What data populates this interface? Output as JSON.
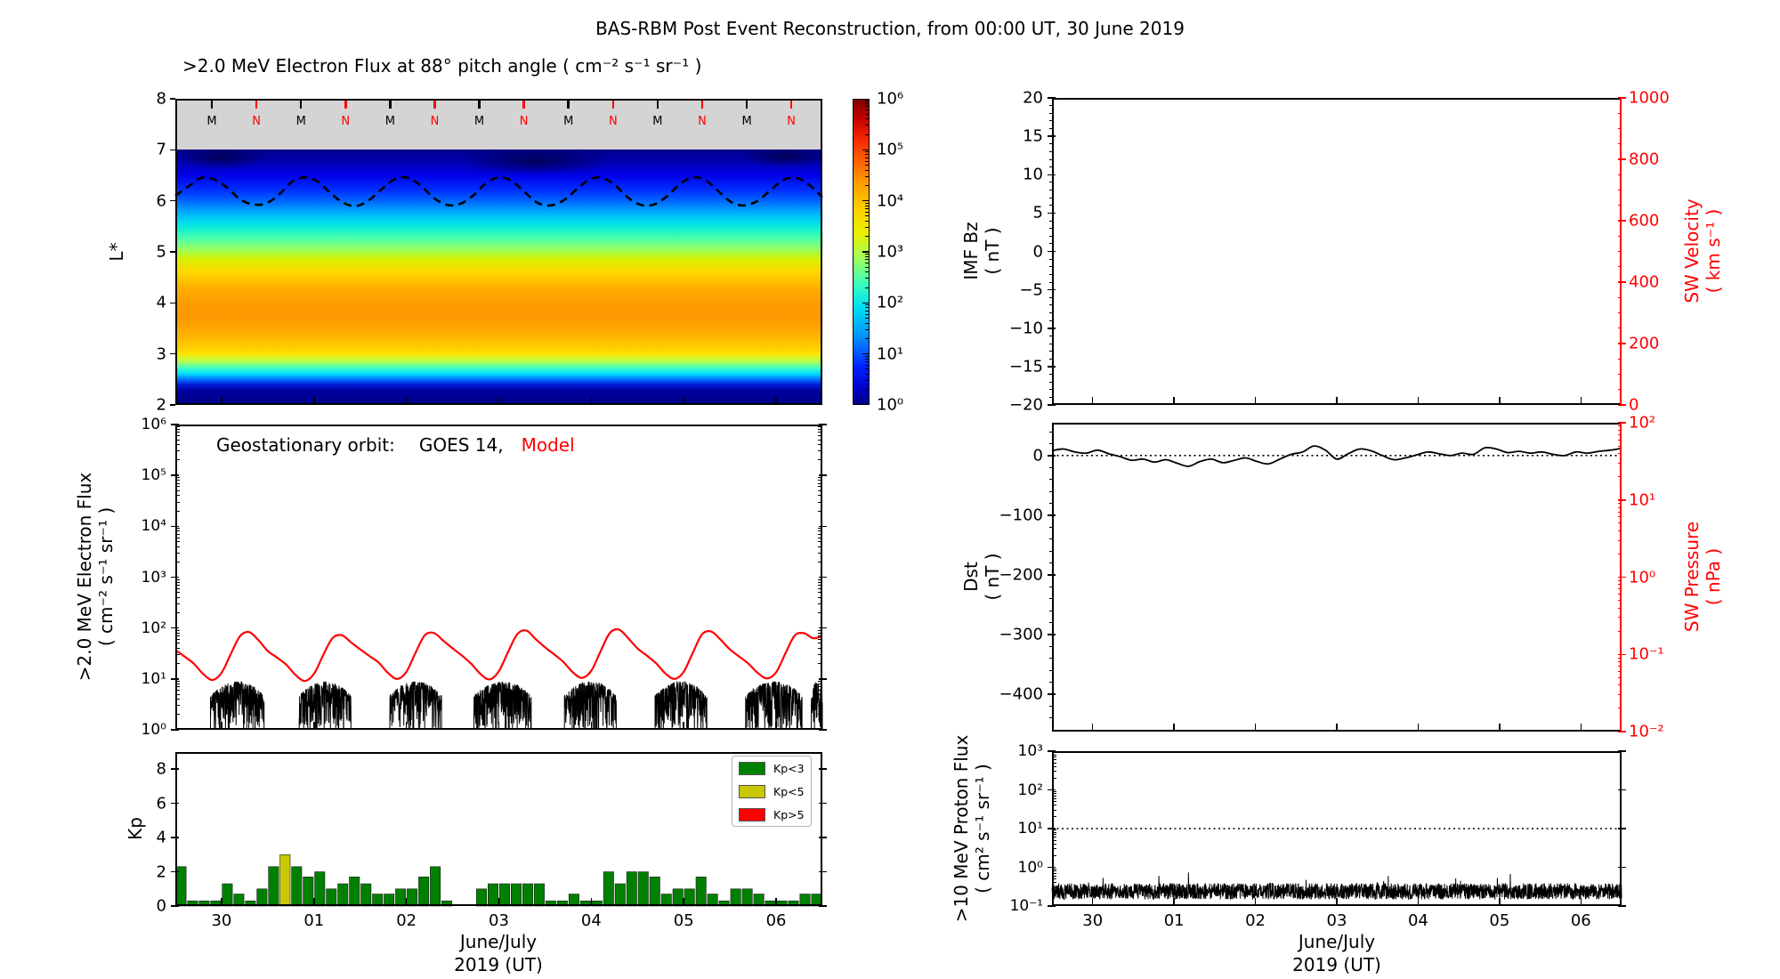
{
  "page_title": "BAS-RBM Post Event Reconstruction, from 00:00 UT, 30 June 2019",
  "accent_colors": {
    "model_red": "#ff0000",
    "axis_red": "#ff0000",
    "gray_band": "#d4d4d4",
    "kp_green": "#008000",
    "kp_yellow": "#c8c800",
    "kp_red": "#ff0000"
  },
  "time_axis": {
    "range_days": [
      29.5,
      36.5
    ],
    "tick_days": [
      30,
      31,
      32,
      33,
      34,
      35,
      36
    ],
    "tick_labels": [
      "30",
      "01",
      "02",
      "03",
      "04",
      "05",
      "06"
    ],
    "xlabel": "June/July",
    "xlabel2": "2019 (UT)"
  },
  "chart_data": {
    "heatmap": {
      "type": "heatmap",
      "title": ">2.0 MeV Electron Flux at 88° pitch angle ( cm⁻² s⁻¹ sr⁻¹ )",
      "ylabel": "L*",
      "ylim": [
        2,
        8
      ],
      "ytick_labels": [
        "8",
        "7",
        "6",
        "5",
        "4",
        "3",
        "2"
      ],
      "yticks": [
        8,
        7,
        6,
        5,
        4,
        3,
        2
      ],
      "gray_band_lrange": [
        7,
        8
      ],
      "satellite_markers": {
        "labels": [
          "M",
          "N"
        ],
        "label_colors": [
          "#000000",
          "#ff0000"
        ],
        "first_frac": 0.0564,
        "step_frac": 0.0689,
        "count": 14
      },
      "colorbar": {
        "tick_labels": [
          "10⁶",
          "10⁵",
          "10⁴",
          "10³",
          "10²",
          "10¹",
          "10⁰"
        ],
        "log_range": [
          0,
          6
        ]
      },
      "gradient_stops": [
        {
          "l": 7.0,
          "color": "#000089"
        },
        {
          "l": 6.75,
          "color": "#0000b4"
        },
        {
          "l": 6.5,
          "color": "#0000e6"
        },
        {
          "l": 6.2,
          "color": "#0030ff"
        },
        {
          "l": 6.0,
          "color": "#0064ff"
        },
        {
          "l": 5.8,
          "color": "#00a4ff"
        },
        {
          "l": 5.6,
          "color": "#00d8f0"
        },
        {
          "l": 5.45,
          "color": "#10f0d0"
        },
        {
          "l": 5.25,
          "color": "#50ffa8"
        },
        {
          "l": 5.05,
          "color": "#96ff60"
        },
        {
          "l": 4.85,
          "color": "#d8f000"
        },
        {
          "l": 4.6,
          "color": "#ffd800"
        },
        {
          "l": 4.3,
          "color": "#ffb000"
        },
        {
          "l": 4.0,
          "color": "#ff9c00"
        },
        {
          "l": 3.7,
          "color": "#ff9800"
        },
        {
          "l": 3.4,
          "color": "#ffae00"
        },
        {
          "l": 3.1,
          "color": "#ffd000"
        },
        {
          "l": 3.0,
          "color": "#ffe400"
        },
        {
          "l": 2.85,
          "color": "#b4ff50"
        },
        {
          "l": 2.72,
          "color": "#3cffc8"
        },
        {
          "l": 2.6,
          "color": "#00d8ff"
        },
        {
          "l": 2.5,
          "color": "#0072ff"
        },
        {
          "l": 2.4,
          "color": "#0020dc"
        },
        {
          "l": 2.28,
          "color": "#0000a0"
        },
        {
          "l": 2.0,
          "color": "#000085"
        }
      ],
      "dark_patches": [
        {
          "t": 30.0,
          "l": 6.85,
          "rt": 0.5,
          "rl": 0.22
        },
        {
          "t": 33.4,
          "l": 6.78,
          "rt": 0.85,
          "rl": 0.28
        },
        {
          "t": 36.1,
          "l": 6.85,
          "rt": 0.5,
          "rl": 0.2
        }
      ],
      "dashed_line": {
        "t_start": 29.5,
        "t_step": 0.14,
        "lstar_values": [
          6.1,
          6.28,
          6.45,
          6.42,
          6.26,
          6.03,
          5.93,
          5.95,
          6.12,
          6.37,
          6.46,
          6.38,
          6.15,
          5.96,
          5.9,
          6.02,
          6.24,
          6.43,
          6.45,
          6.29,
          6.05,
          5.92,
          5.94,
          6.1,
          6.34,
          6.46,
          6.39,
          6.17,
          5.96,
          5.91,
          6.01,
          6.22,
          6.42,
          6.45,
          6.3,
          6.06,
          5.92,
          5.93,
          6.09,
          6.33,
          6.46,
          6.4,
          6.18,
          5.97,
          5.91,
          6.0,
          6.21,
          6.41,
          6.45,
          6.31,
          6.07
        ]
      }
    },
    "electron_flux": {
      "type": "line",
      "annotation": {
        "prefix": "Geostationary orbit:",
        "satellite": "GOES 14,",
        "model_label": "Model"
      },
      "ylabel": ">2.0 MeV Electron Flux",
      "ylabel_units": "( cm⁻² s⁻¹ sr⁻¹ )",
      "ytick_labels": [
        "10⁶",
        "10⁵",
        "10⁴",
        "10³",
        "10²",
        "10¹",
        "10⁰"
      ],
      "log_ylim": [
        0,
        6
      ],
      "model_line": {
        "t_start": 29.5,
        "t_step": 0.1,
        "log10_values": [
          1.57,
          1.44,
          1.3,
          1.1,
          0.98,
          1.12,
          1.49,
          1.84,
          1.92,
          1.76,
          1.55,
          1.42,
          1.28,
          1.08,
          0.96,
          1.1,
          1.47,
          1.8,
          1.86,
          1.72,
          1.58,
          1.45,
          1.32,
          1.12,
          1.0,
          1.14,
          1.52,
          1.86,
          1.9,
          1.75,
          1.6,
          1.46,
          1.3,
          1.1,
          0.99,
          1.15,
          1.53,
          1.88,
          1.95,
          1.78,
          1.62,
          1.48,
          1.33,
          1.13,
          1.02,
          1.16,
          1.54,
          1.9,
          1.97,
          1.8,
          1.6,
          1.46,
          1.31,
          1.11,
          1.0,
          1.14,
          1.52,
          1.88,
          1.93,
          1.77,
          1.58,
          1.44,
          1.3,
          1.12,
          1.01,
          1.13,
          1.5,
          1.85,
          1.9,
          1.8,
          1.84
        ]
      },
      "goes_data_bursts": {
        "windows": [
          [
            29.88,
            30.46
          ],
          [
            30.84,
            31.4
          ],
          [
            31.82,
            32.38
          ],
          [
            32.73,
            33.35
          ],
          [
            33.71,
            34.27
          ],
          [
            34.69,
            35.25
          ],
          [
            35.67,
            36.28
          ],
          [
            36.38,
            36.5
          ]
        ],
        "top_log10": 0.95,
        "floor_log10": 0.05
      }
    },
    "kp": {
      "type": "bar",
      "ylabel": "Kp",
      "ytick_labels": [
        "0",
        "2",
        "4",
        "6",
        "8"
      ],
      "yticks": [
        0,
        2,
        4,
        6,
        8
      ],
      "ylim": [
        0,
        9
      ],
      "start_day": 29.5,
      "step_days": 0.125,
      "values": [
        2.3,
        0.3,
        0.3,
        0.3,
        1.3,
        0.7,
        0.3,
        1.0,
        2.3,
        3.0,
        2.3,
        1.7,
        2.0,
        1.0,
        1.3,
        1.7,
        1.3,
        0.7,
        0.7,
        1.0,
        1.0,
        1.7,
        2.3,
        0.3,
        0,
        0,
        1.0,
        1.3,
        1.3,
        1.3,
        1.3,
        1.3,
        0.3,
        0.3,
        0.7,
        0.3,
        0.3,
        2.0,
        1.3,
        2.0,
        2.0,
        1.7,
        0.7,
        1.0,
        1.0,
        1.7,
        0.7,
        0.3,
        1.0,
        1.0,
        0.7,
        0.3,
        0.3,
        0.3,
        0.7,
        0.7
      ],
      "legend": [
        {
          "label": "Kp<3",
          "color": "#008000"
        },
        {
          "label": "Kp<5",
          "color": "#c8c800"
        },
        {
          "label": "Kp>5",
          "color": "#ff0000"
        }
      ]
    },
    "imf_sw": {
      "type": "line",
      "ylabel": "IMF Bz",
      "ylabel_units": "( nT )",
      "ytick_labels": [
        "20",
        "15",
        "10",
        "5",
        "0",
        "−5",
        "−10",
        "−15",
        "−20"
      ],
      "yticks": [
        20,
        15,
        10,
        5,
        0,
        -5,
        -10,
        -15,
        -20
      ],
      "ylim": [
        -20,
        20
      ],
      "right_ylabel": "SW Velocity",
      "right_ylabel_units": "( km s⁻¹ )",
      "right_ytick_labels": [
        "1000",
        "800",
        "600",
        "400",
        "200",
        "0"
      ],
      "right_yticks": [
        1000,
        800,
        600,
        400,
        200,
        0
      ],
      "right_ylim": [
        0,
        1000
      ],
      "series": []
    },
    "dst_pressure": {
      "type": "line",
      "ylabel": "Dst",
      "ylabel_units": "( nT )",
      "ytick_labels": [
        "0",
        "−100",
        "−200",
        "−300",
        "−400"
      ],
      "yticks": [
        0,
        -100,
        -200,
        -300,
        -400
      ],
      "ylim": [
        -463,
        55
      ],
      "dotted_reference": 0,
      "right_ylabel": "SW Pressure",
      "right_ylabel_units": "( nPa )",
      "right_ytick_labels": [
        "10²",
        "10¹",
        "10⁰",
        "10⁻¹",
        "10⁻²"
      ],
      "right_log_ylim": [
        -2,
        2
      ],
      "dst_line": {
        "t_start": 29.5,
        "t_step": 0.14,
        "values": [
          8,
          11,
          6,
          4,
          9,
          3,
          -2,
          -8,
          -6,
          -11,
          -7,
          -13,
          -18,
          -10,
          -6,
          -12,
          -8,
          -4,
          -10,
          -14,
          -6,
          2,
          6,
          16,
          9,
          -6,
          3,
          11,
          8,
          0,
          -7,
          -4,
          1,
          6,
          3,
          0,
          4,
          2,
          13,
          11,
          5,
          7,
          4,
          6,
          2,
          0,
          6,
          4,
          7,
          9,
          12
        ]
      }
    },
    "proton_flux": {
      "type": "line",
      "ylabel": ">10 MeV Proton Flux",
      "ylabel_units": "( cm² s⁻¹ sr⁻¹ )",
      "ytick_labels": [
        "10³",
        "10²",
        "10¹",
        "10⁰",
        "10⁻¹"
      ],
      "log_ylim": [
        -1,
        3
      ],
      "dotted_reference_log10": 1,
      "noise": {
        "baseline_log10": -0.62,
        "spread_log10": 0.42,
        "spike_prob": 0.012,
        "spike_extra": 0.3
      }
    }
  }
}
